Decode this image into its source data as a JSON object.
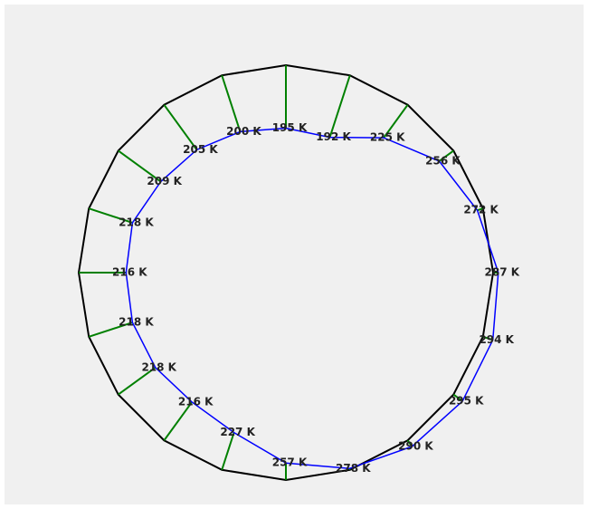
{
  "chart_data": {
    "type": "radar",
    "values": [
      195,
      192,
      225,
      256,
      272,
      287,
      294,
      295,
      290,
      278,
      257,
      227,
      216,
      218,
      218,
      216,
      218,
      209,
      205,
      200
    ],
    "value_labels": [
      "195 K",
      "192 K",
      "225 K",
      "256 K",
      "272 K",
      "287 K",
      "294 K",
      "295 K",
      "290 K",
      "278 K",
      "257 K",
      "227 K",
      "216 K",
      "218 K",
      "218 K",
      "216 K",
      "218 K",
      "209 K",
      "205 K",
      "200 K"
    ],
    "color": "#0000ff",
    "spoke_color": "#008000",
    "outline_color": "#000000"
  }
}
